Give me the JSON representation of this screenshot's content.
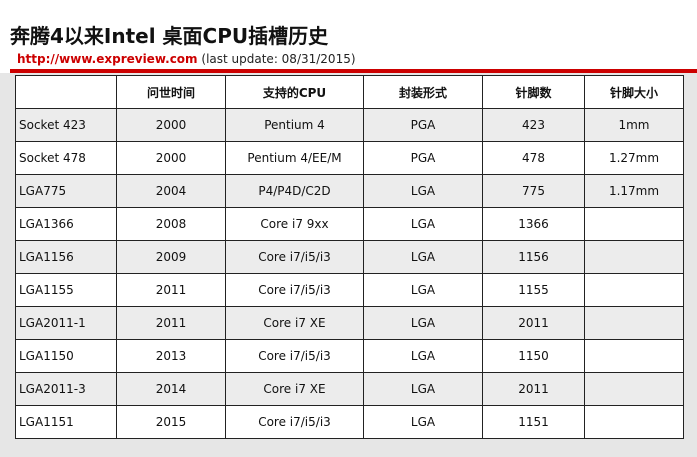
{
  "header": {
    "title": "奔腾4以来Intel 桌面CPU插槽历史",
    "url": "http://www.expreview.com",
    "update_note": "(last update: 08/31/2015)"
  },
  "colors": {
    "accent_red": "#cc0000",
    "panel_gray": "#e6e6e6",
    "row_shade": "#ececec"
  },
  "table": {
    "columns": [
      "",
      "问世时间",
      "支持的CPU",
      "封装形式",
      "针脚数",
      "针脚大小"
    ],
    "rows": [
      [
        "Socket 423",
        "2000",
        "Pentium 4",
        "PGA",
        "423",
        "1mm"
      ],
      [
        "Socket 478",
        "2000",
        "Pentium 4/EE/M",
        "PGA",
        "478",
        "1.27mm"
      ],
      [
        "LGA775",
        "2004",
        "P4/P4D/C2D",
        "LGA",
        "775",
        "1.17mm"
      ],
      [
        "LGA1366",
        "2008",
        "Core i7 9xx",
        "LGA",
        "1366",
        ""
      ],
      [
        "LGA1156",
        "2009",
        "Core i7/i5/i3",
        "LGA",
        "1156",
        ""
      ],
      [
        "LGA1155",
        "2011",
        "Core i7/i5/i3",
        "LGA",
        "1155",
        ""
      ],
      [
        "LGA2011-1",
        "2011",
        "Core i7 XE",
        "LGA",
        "2011",
        ""
      ],
      [
        "LGA1150",
        "2013",
        "Core i7/i5/i3",
        "LGA",
        "1150",
        ""
      ],
      [
        "LGA2011-3",
        "2014",
        "Core i7 XE",
        "LGA",
        "2011",
        ""
      ],
      [
        "LGA1151",
        "2015",
        "Core i7/i5/i3",
        "LGA",
        "1151",
        ""
      ]
    ]
  }
}
